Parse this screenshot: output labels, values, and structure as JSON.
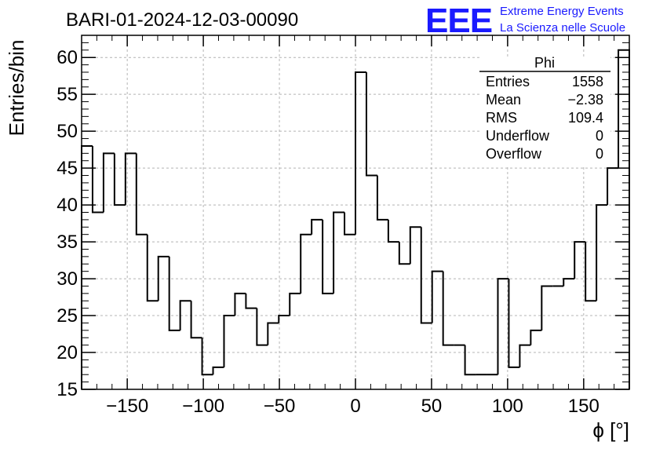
{
  "logo": {
    "acronym": "EEE",
    "line1": "Extreme Energy Events",
    "line2": "La Scienza nelle Scuole"
  },
  "stats": {
    "title": "Phi",
    "rows": [
      {
        "label": "Entries",
        "value": "1558"
      },
      {
        "label": "Mean",
        "value": "−2.38"
      },
      {
        "label": "RMS",
        "value": "109.4"
      },
      {
        "label": "Underflow",
        "value": "0"
      },
      {
        "label": "Overflow",
        "value": "0"
      }
    ]
  },
  "chart_data": {
    "type": "histogram",
    "title": "BARI-01-2024-12-03-00090",
    "xlabel": "ϕ [°]",
    "ylabel": "Entries/bin",
    "xlim": [
      -180,
      180
    ],
    "ylim": [
      15,
      63
    ],
    "bin_width": 7.2,
    "grid": true,
    "line_color": "#000000",
    "x_ticks": [
      -150,
      -100,
      -50,
      0,
      50,
      100,
      150
    ],
    "x_tick_labels": [
      "−150",
      "−100",
      "−50",
      "0",
      "50",
      "100",
      "150"
    ],
    "y_ticks": [
      15,
      20,
      25,
      30,
      35,
      40,
      45,
      50,
      55,
      60
    ],
    "y_tick_labels": [
      "15",
      "20",
      "25",
      "30",
      "35",
      "40",
      "45",
      "50",
      "55",
      "60"
    ],
    "values": [
      48,
      39,
      47,
      40,
      47,
      36,
      27,
      33,
      23,
      27,
      22,
      17,
      18,
      25,
      28,
      26,
      21,
      24,
      25,
      28,
      36,
      38,
      28,
      39,
      36,
      58,
      44,
      38,
      35,
      32,
      37,
      24,
      31,
      21,
      21,
      17,
      17,
      17,
      30,
      18,
      21,
      23,
      29,
      29,
      30,
      35,
      27,
      40,
      45,
      61
    ]
  }
}
